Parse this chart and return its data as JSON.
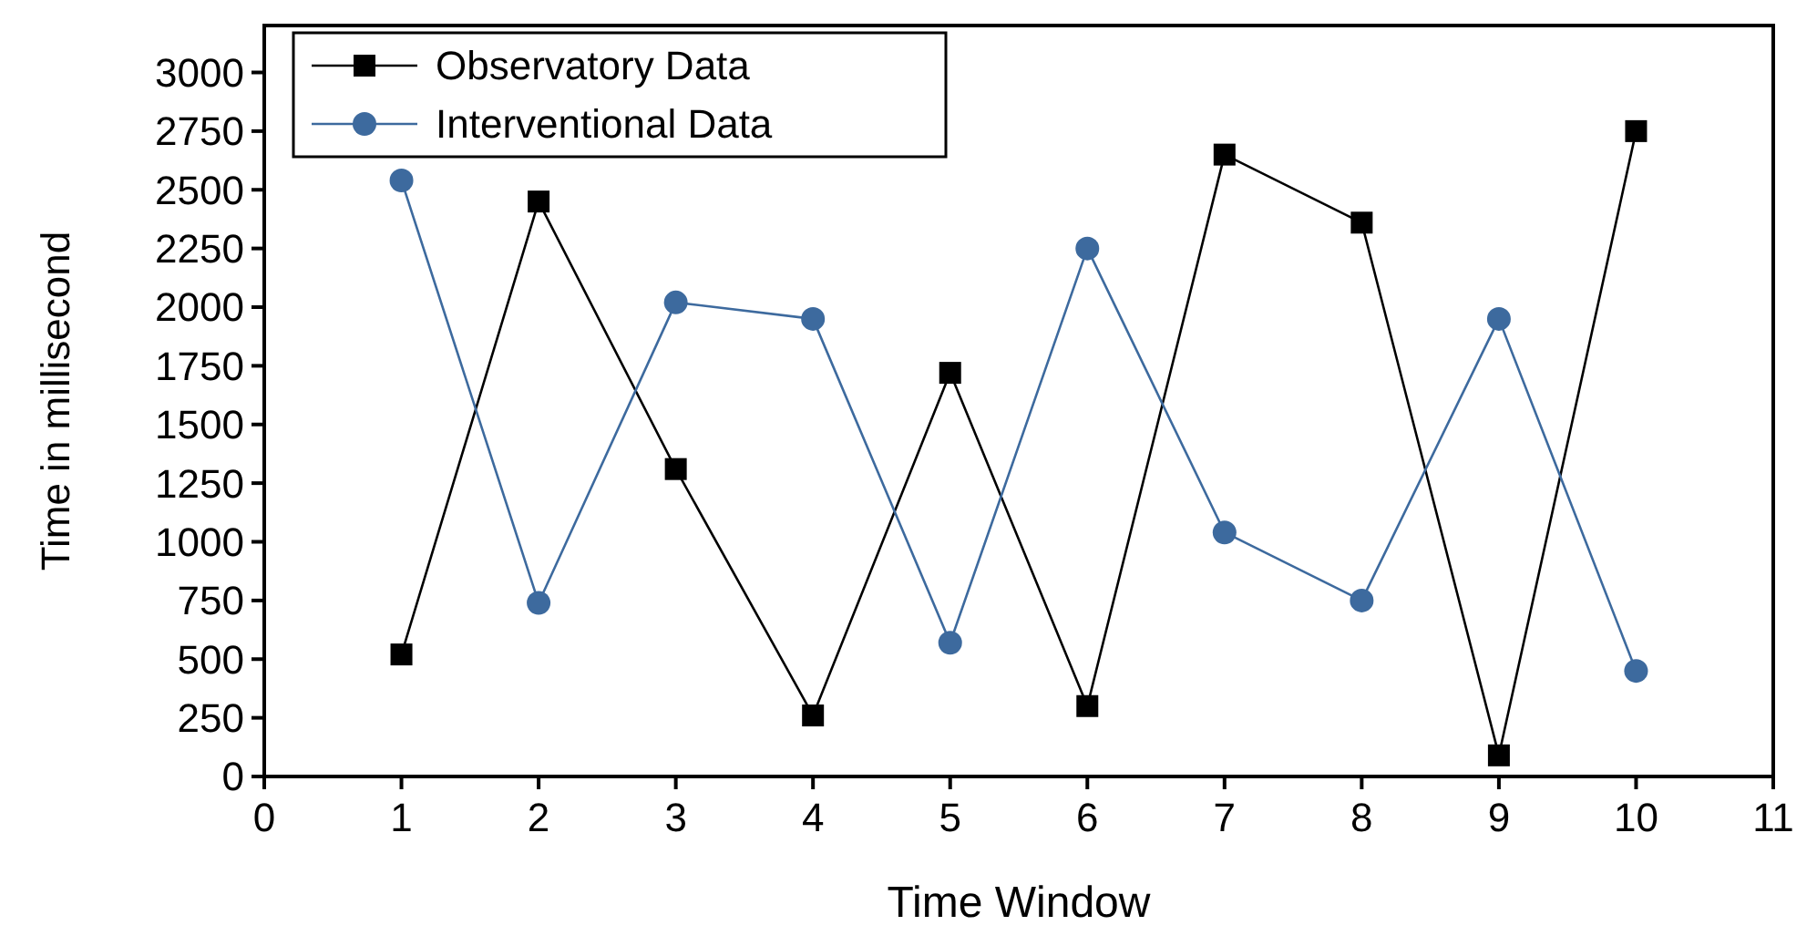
{
  "chart_data": {
    "type": "line",
    "xlabel": "Time Window",
    "ylabel": "Time in millisecond",
    "x": [
      1,
      2,
      3,
      4,
      5,
      6,
      7,
      8,
      9,
      10
    ],
    "xlim": [
      0,
      11
    ],
    "xticks": [
      0,
      1,
      2,
      3,
      4,
      5,
      6,
      7,
      8,
      9,
      10,
      11
    ],
    "ylim": [
      0,
      3200
    ],
    "yticks": [
      0,
      250,
      500,
      750,
      1000,
      1250,
      1500,
      1750,
      2000,
      2250,
      2500,
      2750,
      3000
    ],
    "grid": false,
    "legend": "top left",
    "line_style": "solid",
    "series": [
      {
        "name": "Observatory Data",
        "color": "#000000",
        "marker": "square",
        "values": [
          520,
          2450,
          1310,
          260,
          1720,
          300,
          2650,
          2360,
          90,
          2750
        ]
      },
      {
        "name": "Interventional Data",
        "color": "#3d6a9e",
        "marker": "circle",
        "values": [
          2540,
          740,
          2020,
          1950,
          570,
          2250,
          1040,
          750,
          1950,
          450
        ]
      }
    ]
  }
}
